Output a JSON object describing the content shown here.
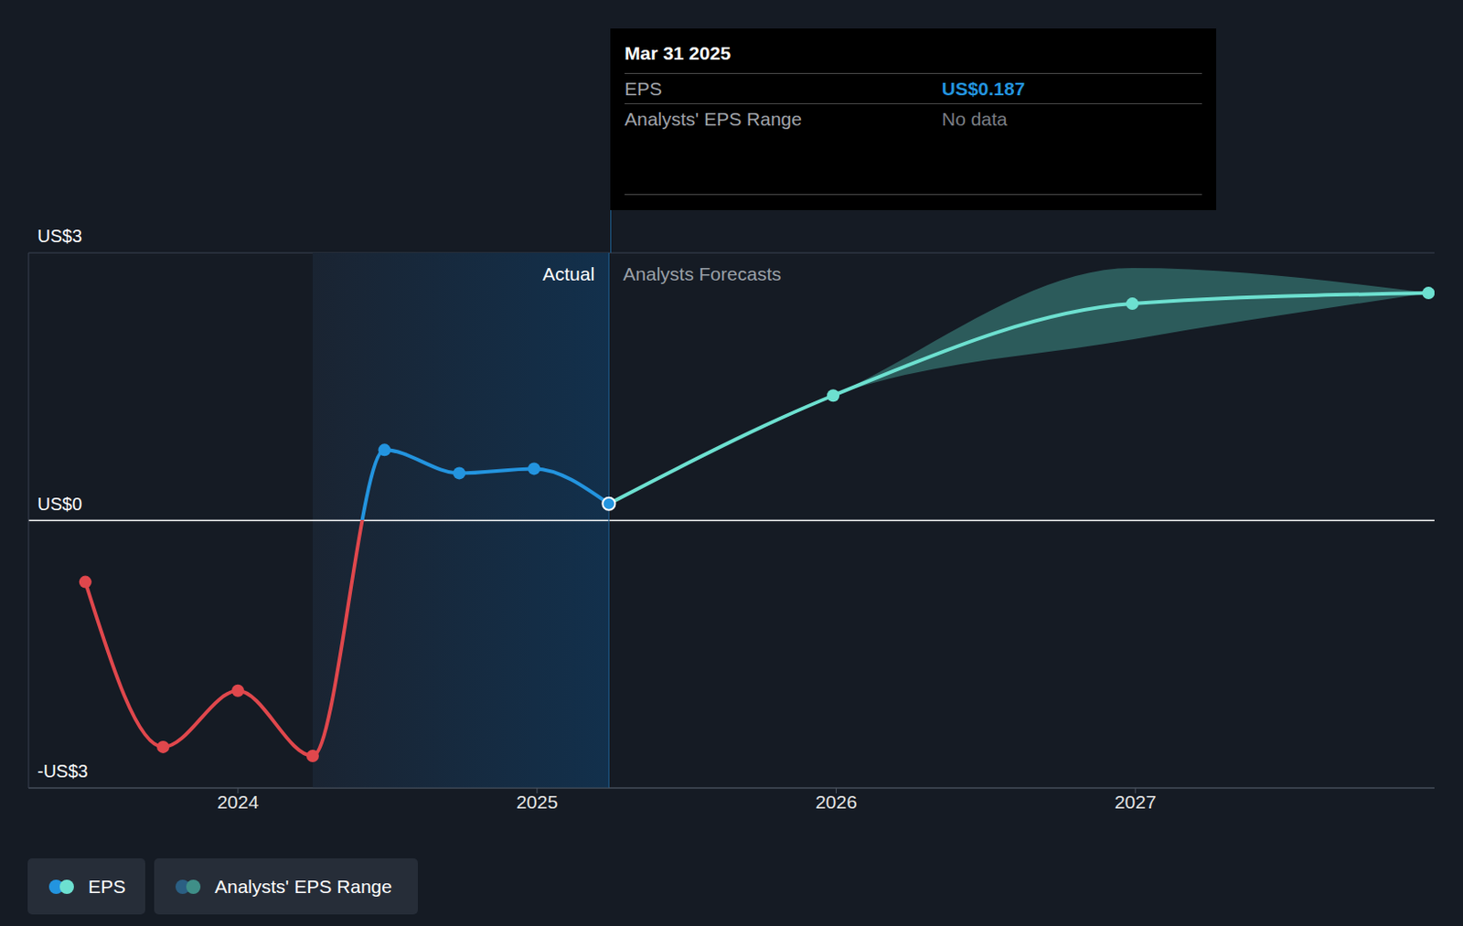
{
  "chart_data": {
    "type": "line",
    "x": [
      2023.49,
      2023.75,
      2024.0,
      2024.25,
      2024.49,
      2024.74,
      2024.99,
      2025.24,
      2025.99,
      2026.99,
      2027.98
    ],
    "xlim": [
      2023.3,
      2028
    ],
    "xticks": [
      2024,
      2025,
      2026,
      2027
    ],
    "ylim": [
      -3,
      3
    ],
    "yticks": [
      {
        "value": -3,
        "label": "-US$3"
      },
      {
        "value": 0,
        "label": "US$0"
      },
      {
        "value": 3,
        "label": "US$3"
      }
    ],
    "grid": true,
    "series": [
      {
        "name": "EPS",
        "color": "#2394df",
        "colors": [
          "#e0474c",
          "#e0474c",
          "#e0474c",
          "#e0474c",
          "#2394df",
          "#2394df",
          "#2394df",
          "#2394df",
          null,
          null,
          null
        ],
        "values": [
          -0.69,
          -2.54,
          -1.91,
          -2.64,
          0.79,
          0.53,
          0.58,
          0.187,
          null,
          null,
          null
        ]
      },
      {
        "name": "EPS",
        "color": "#6de0d0",
        "values": [
          null,
          null,
          null,
          null,
          null,
          null,
          null,
          0.187,
          1.4,
          2.43,
          2.55
        ]
      },
      {
        "name": "Analysts' EPS Range",
        "type": "area",
        "color": "#3f8f88",
        "low": [
          null,
          null,
          null,
          null,
          null,
          null,
          null,
          0.187,
          1.4,
          2.03,
          2.55
        ],
        "high": [
          null,
          null,
          null,
          null,
          null,
          null,
          null,
          0.187,
          1.4,
          2.83,
          2.55
        ]
      }
    ],
    "actual_range": [
      2024.25,
      2025.24
    ],
    "annotations": {
      "actual": "Actual",
      "forecast": "Analysts Forecasts"
    },
    "tooltip": {
      "date": "Mar 31 2025",
      "rows": [
        [
          "EPS",
          "US$0.187"
        ],
        [
          "Analysts' EPS Range",
          "No data"
        ]
      ]
    }
  }
}
